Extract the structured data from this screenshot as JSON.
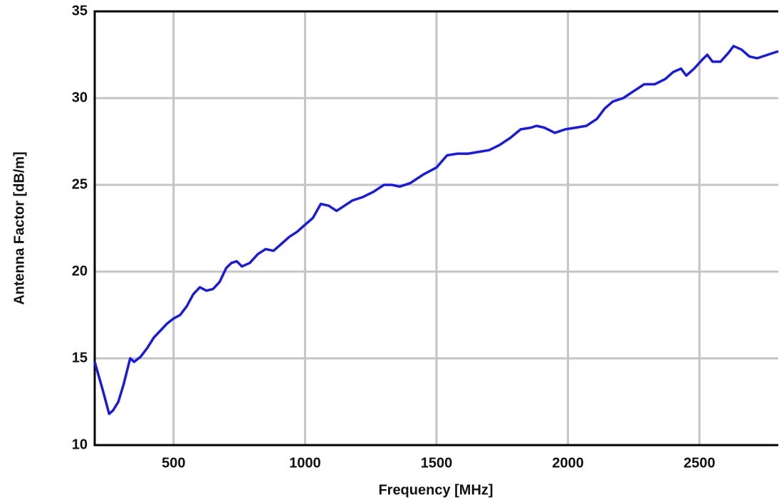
{
  "chart_data": {
    "type": "line",
    "xlabel": "Frequency [MHz]",
    "ylabel": "Antenna Factor [dB/m]",
    "x": [
      200,
      230,
      255,
      270,
      290,
      310,
      335,
      350,
      375,
      400,
      425,
      450,
      475,
      500,
      525,
      550,
      575,
      600,
      625,
      650,
      675,
      700,
      720,
      740,
      760,
      790,
      820,
      850,
      880,
      910,
      940,
      970,
      1000,
      1030,
      1060,
      1090,
      1120,
      1150,
      1180,
      1220,
      1260,
      1300,
      1330,
      1360,
      1400,
      1450,
      1500,
      1540,
      1580,
      1620,
      1660,
      1700,
      1740,
      1780,
      1820,
      1860,
      1880,
      1910,
      1950,
      1990,
      2030,
      2070,
      2110,
      2140,
      2170,
      2210,
      2250,
      2290,
      2330,
      2370,
      2400,
      2430,
      2450,
      2480,
      2510,
      2530,
      2550,
      2580,
      2610,
      2630,
      2660,
      2690,
      2720,
      2760,
      2800
    ],
    "series": [
      {
        "name": "Antenna Factor",
        "color": "#1a1adc",
        "values": [
          14.8,
          13.2,
          11.8,
          12.0,
          12.5,
          13.5,
          15.0,
          14.8,
          15.1,
          15.6,
          16.2,
          16.6,
          17.0,
          17.3,
          17.5,
          18.0,
          18.7,
          19.1,
          18.9,
          19.0,
          19.4,
          20.2,
          20.5,
          20.6,
          20.3,
          20.5,
          21.0,
          21.3,
          21.2,
          21.6,
          22.0,
          22.3,
          22.7,
          23.1,
          23.9,
          23.8,
          23.5,
          23.8,
          24.1,
          24.3,
          24.6,
          25.0,
          25.0,
          24.9,
          25.1,
          25.6,
          26.0,
          26.7,
          26.8,
          26.8,
          26.9,
          27.0,
          27.3,
          27.7,
          28.2,
          28.3,
          28.4,
          28.3,
          28.0,
          28.2,
          28.3,
          28.4,
          28.8,
          29.4,
          29.8,
          30.0,
          30.4,
          30.8,
          30.8,
          31.1,
          31.5,
          31.7,
          31.3,
          31.7,
          32.2,
          32.5,
          32.1,
          32.1,
          32.6,
          33.0,
          32.8,
          32.4,
          32.3,
          32.5,
          32.7
        ]
      }
    ],
    "xlim": [
      200,
      2800
    ],
    "ylim": [
      10,
      35
    ],
    "xticks": [
      500,
      1000,
      1500,
      2000,
      2500
    ],
    "yticks": [
      10,
      15,
      20,
      25,
      30,
      35
    ],
    "grid": true
  }
}
